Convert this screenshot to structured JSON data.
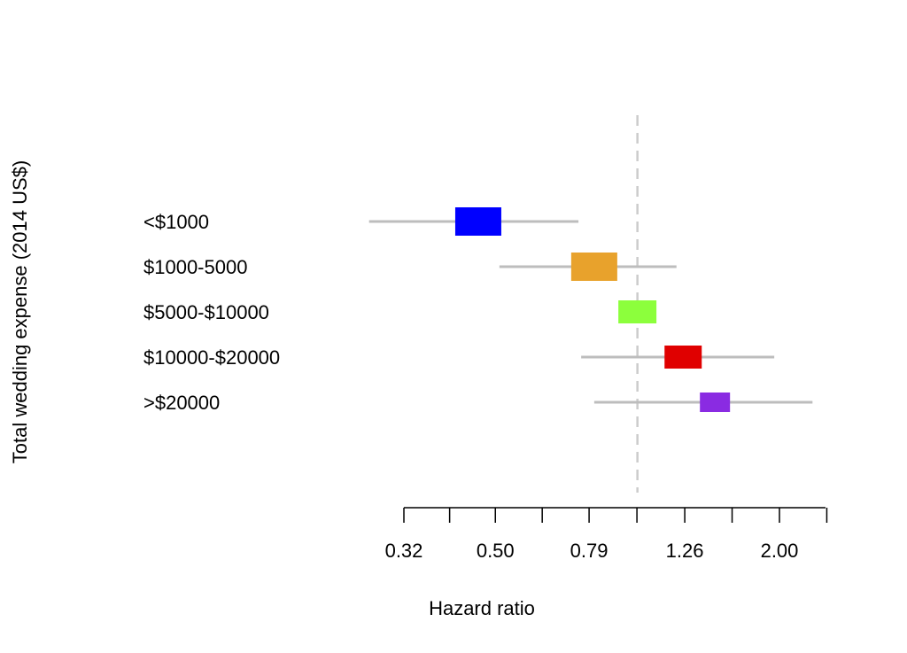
{
  "chart_data": {
    "type": "forest",
    "xscale": "log",
    "ylabel": "Total wedding expense (2014 US$)",
    "xlabel": "Hazard ratio",
    "xtick_labels": [
      "0.32",
      "0.50",
      "0.79",
      "1.26",
      "2.00"
    ],
    "xtick_values": [
      0.32,
      0.5,
      0.79,
      1.26,
      2.0
    ],
    "xlim": [
      0.32,
      2.3
    ],
    "reference_line": 1.0,
    "rows": [
      {
        "label": "<$1000",
        "hr": 0.46,
        "ci_low": 0.27,
        "ci_high": 0.75,
        "color": "#0000ff"
      },
      {
        "label": "$1000-5000",
        "hr": 0.81,
        "ci_low": 0.51,
        "ci_high": 1.21,
        "color": "#e8a22c"
      },
      {
        "label": "$5000-$10000",
        "hr": 1.0,
        "ci_low": 1.0,
        "ci_high": 1.0,
        "color": "#8cff3c"
      },
      {
        "label": "$10000-$20000",
        "hr": 1.25,
        "ci_low": 0.76,
        "ci_high": 1.95,
        "color": "#e00000"
      },
      {
        "label": ">$20000",
        "hr": 1.46,
        "ci_low": 0.81,
        "ci_high": 2.35,
        "color": "#8a2be2"
      }
    ]
  }
}
